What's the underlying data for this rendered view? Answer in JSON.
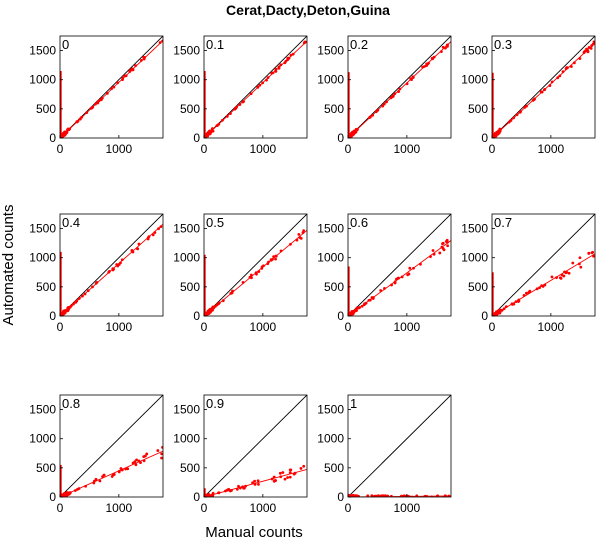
{
  "title": "Cerat,Dacty,Deton,Guina",
  "xlabel": "Manual counts",
  "ylabel": "Automated counts",
  "colors": {
    "points": "#ff0000",
    "fit": "#ff0000",
    "identity": "#000000",
    "axes": "#000000"
  },
  "chart_data": {
    "type": "scatter",
    "title": "Cerat,Dacty,Deton,Guina",
    "xlabel": "Manual counts",
    "ylabel": "Automated counts",
    "xlim": [
      0,
      1750
    ],
    "ylim": [
      0,
      1750
    ],
    "xticks": [
      0,
      1000
    ],
    "yticks": [
      0,
      500,
      1000,
      1500
    ],
    "grid": false,
    "legend": "none",
    "panels": [
      {
        "label": "0",
        "slope": 0.955,
        "spike": 1150,
        "spread": 0.02
      },
      {
        "label": "0.1",
        "slope": 0.95,
        "spike": 1150,
        "spread": 0.02
      },
      {
        "label": "0.2",
        "slope": 0.945,
        "spike": 1130,
        "spread": 0.02
      },
      {
        "label": "0.3",
        "slope": 0.93,
        "spike": 1120,
        "spread": 0.025
      },
      {
        "label": "0.4",
        "slope": 0.9,
        "spike": 1100,
        "spread": 0.03
      },
      {
        "label": "0.5",
        "slope": 0.84,
        "spike": 1050,
        "spread": 0.05
      },
      {
        "label": "0.6",
        "slope": 0.74,
        "spike": 850,
        "spread": 0.07
      },
      {
        "label": "0.7",
        "slope": 0.61,
        "spike": 750,
        "spread": 0.1
      },
      {
        "label": "0.8",
        "slope": 0.45,
        "spike": 550,
        "spread": 0.14
      },
      {
        "label": "0.9",
        "slope": 0.27,
        "spike": 150,
        "spread": 0.18
      },
      {
        "label": "1",
        "slope": 0.01,
        "spike": 20,
        "spread": 0.5
      }
    ]
  }
}
